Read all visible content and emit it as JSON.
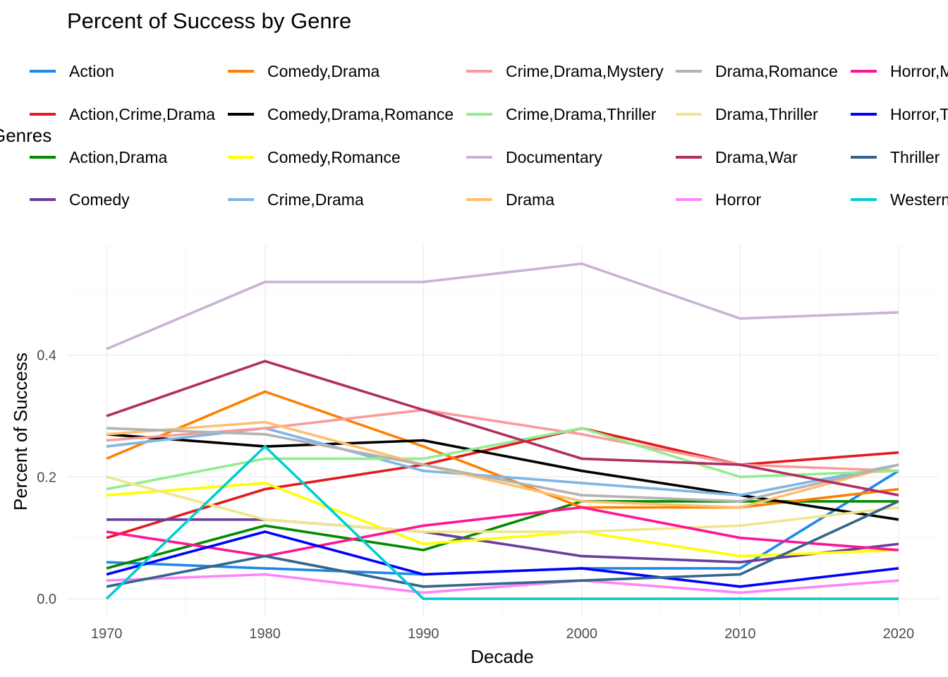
{
  "chart_data": {
    "type": "line",
    "title": "Percent of Success by Genre",
    "xlabel": "Decade",
    "ylabel": "Percent of Success",
    "legend_title": "Genres",
    "legend_position": "top",
    "grid": true,
    "x": [
      1970,
      1980,
      1990,
      2000,
      2010,
      2020
    ],
    "x_ticks": [
      "1970",
      "1980",
      "1990",
      "2000",
      "2010",
      "2020"
    ],
    "y_ticks": [
      "0.0",
      "0.2",
      "0.4"
    ],
    "xlim": [
      1967.5,
      2022.5
    ],
    "ylim": [
      -0.03,
      0.58
    ],
    "series": [
      {
        "name": "Action",
        "color": "#1E88E5",
        "values": [
          0.06,
          0.05,
          0.04,
          0.05,
          0.05,
          0.21
        ]
      },
      {
        "name": "Action,Crime,Drama",
        "color": "#E41A1C",
        "values": [
          0.1,
          0.18,
          0.22,
          0.28,
          0.22,
          0.24
        ]
      },
      {
        "name": "Action,Drama",
        "color": "#008B00",
        "values": [
          0.05,
          0.12,
          0.08,
          0.16,
          0.16,
          0.16
        ]
      },
      {
        "name": "Comedy",
        "color": "#6A3D9A",
        "values": [
          0.13,
          0.13,
          0.11,
          0.07,
          0.06,
          0.09
        ]
      },
      {
        "name": "Comedy,Drama",
        "color": "#FF7F00",
        "values": [
          0.23,
          0.34,
          0.25,
          0.15,
          0.15,
          0.18
        ]
      },
      {
        "name": "Comedy,Drama,Romance",
        "color": "#000000",
        "values": [
          0.27,
          0.25,
          0.26,
          0.21,
          0.17,
          0.13
        ]
      },
      {
        "name": "Comedy,Romance",
        "color": "#FFFF00",
        "values": [
          0.17,
          0.19,
          0.09,
          0.11,
          0.07,
          0.08
        ]
      },
      {
        "name": "Crime,Drama",
        "color": "#7EB6E6",
        "values": [
          0.25,
          0.28,
          0.21,
          0.19,
          0.17,
          0.22
        ]
      },
      {
        "name": "Crime,Drama,Mystery",
        "color": "#FB9A99",
        "values": [
          0.26,
          0.28,
          0.31,
          0.27,
          0.22,
          0.21
        ]
      },
      {
        "name": "Crime,Drama,Thriller",
        "color": "#90EE90",
        "values": [
          0.18,
          0.23,
          0.23,
          0.28,
          0.2,
          0.21
        ]
      },
      {
        "name": "Documentary",
        "color": "#CAB2D6",
        "values": [
          0.41,
          0.52,
          0.52,
          0.55,
          0.46,
          0.47
        ]
      },
      {
        "name": "Drama",
        "color": "#FDBF6F",
        "values": [
          0.27,
          0.29,
          0.22,
          0.16,
          0.15,
          0.22
        ]
      },
      {
        "name": "Drama,Romance",
        "color": "#B3B3B3",
        "values": [
          0.28,
          0.27,
          0.22,
          0.17,
          0.16,
          0.22
        ]
      },
      {
        "name": "Drama,Thriller",
        "color": "#F0E68C",
        "values": [
          0.2,
          0.13,
          0.11,
          0.11,
          0.12,
          0.15
        ]
      },
      {
        "name": "Drama,War",
        "color": "#B03060",
        "values": [
          0.3,
          0.39,
          0.31,
          0.23,
          0.22,
          0.17
        ]
      },
      {
        "name": "Horror",
        "color": "#FF83FA",
        "values": [
          0.03,
          0.04,
          0.01,
          0.03,
          0.01,
          0.03
        ]
      },
      {
        "name": "Horror,Mystery",
        "color": "#FF1493",
        "values": [
          0.11,
          0.07,
          0.12,
          0.15,
          0.1,
          0.08
        ]
      },
      {
        "name": "Horror,Thriller",
        "color": "#0000FF",
        "values": [
          0.04,
          0.11,
          0.04,
          0.05,
          0.02,
          0.05
        ]
      },
      {
        "name": "Thriller",
        "color": "#36648B",
        "values": [
          0.02,
          0.07,
          0.02,
          0.03,
          0.04,
          0.16
        ]
      },
      {
        "name": "Western",
        "color": "#00CED1",
        "values": [
          0.0,
          0.25,
          0.0,
          0.0,
          0.0,
          0.0
        ]
      }
    ]
  }
}
